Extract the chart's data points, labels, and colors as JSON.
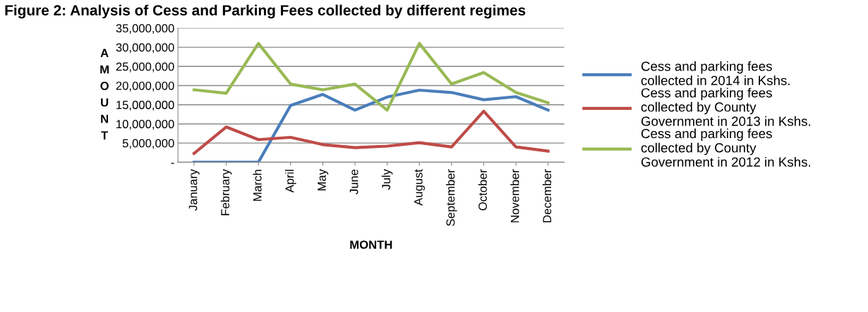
{
  "chart_data": {
    "type": "line",
    "title": "Figure 2: Analysis of Cess and Parking Fees collected by different regimes",
    "xlabel": "MONTH",
    "ylabel": "AMOUNT",
    "categories": [
      "January",
      "February",
      "March",
      "April",
      "May",
      "June",
      "July",
      "August",
      "September",
      "October",
      "November",
      "December"
    ],
    "series": [
      {
        "name": "Cess and parking fees collected in 2014 in Kshs.",
        "color": "#4a7ebb",
        "values": [
          0,
          0,
          0,
          14800000,
          17700000,
          13600000,
          17000000,
          18800000,
          18200000,
          16300000,
          17100000,
          13600000
        ]
      },
      {
        "name": "Cess and parking fees collected by County Government in 2013 in Kshs.",
        "color": "#be4b48",
        "values": [
          2300000,
          9200000,
          5900000,
          6500000,
          4600000,
          3800000,
          4200000,
          5100000,
          4000000,
          13300000,
          4000000,
          2900000
        ]
      },
      {
        "name": "Cess and parking fees collected by County Government in 2012 in Kshs.",
        "color": "#98b954",
        "values": [
          18900000,
          18000000,
          31000000,
          20400000,
          18900000,
          20400000,
          13600000,
          31000000,
          20400000,
          23400000,
          18200000,
          15500000
        ]
      }
    ],
    "ylim": [
      0,
      35000000
    ],
    "yticks": [
      {
        "value": 0,
        "label": "-"
      },
      {
        "value": 5000000,
        "label": "5,000,000"
      },
      {
        "value": 10000000,
        "label": "10,000,000"
      },
      {
        "value": 15000000,
        "label": "15,000,000"
      },
      {
        "value": 20000000,
        "label": "20,000,000"
      },
      {
        "value": 25000000,
        "label": "25,000,000"
      },
      {
        "value": 30000000,
        "label": "30,000,000"
      },
      {
        "value": 35000000,
        "label": "35,000,000"
      }
    ],
    "grid": "y",
    "legend": "right",
    "marker": "none",
    "line_style": "solid"
  }
}
